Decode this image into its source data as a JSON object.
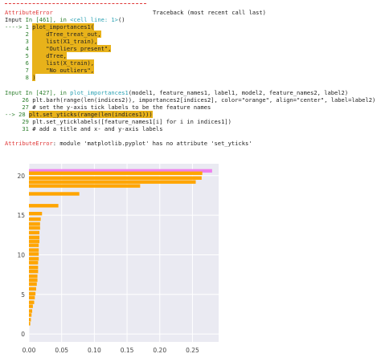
{
  "traceback": {
    "error_name": "AttributeError",
    "header_right": "Traceback (most recent call last)",
    "input1": {
      "prefix": "Input ",
      "in_label": "In [461], in ",
      "cell_ref": "<cell line: 1>",
      "suffix": "()",
      "arrow_line": "----> 1 ",
      "lines": [
        {
          "num": "",
          "code": "plot_importances1("
        },
        {
          "num": "2",
          "code": "    dTree_treat_out,"
        },
        {
          "num": "3",
          "code": "    list(X1_train),"
        },
        {
          "num": "4",
          "code": "    \"Outliers present\","
        },
        {
          "num": "5",
          "code": "    dTree,"
        },
        {
          "num": "6",
          "code": "    list(X_train),"
        },
        {
          "num": "7",
          "code": "    \"No outliers\","
        },
        {
          "num": "8",
          "code": ")"
        }
      ]
    },
    "input2": {
      "in_label": "Input In [427], in ",
      "func": "plot_importances1",
      "args": "(model1, feature_names1, label1, model2, feature_names2, label2)",
      "lines": [
        {
          "num": "26",
          "code": "plt.barh(range(len(indices2)), importances2[indices2], color=\"orange\", align=\"center\", label=label2)"
        },
        {
          "num": "27",
          "code": "# set the y-axis tick labels to be the feature names"
        },
        {
          "num": "28",
          "code": "plt.set_yticks(range(len(indices1)))",
          "arrow": "--> 28 "
        },
        {
          "num": "29",
          "code": "plt.set_yticklabels([feature_names1[i] for i in indices1])"
        },
        {
          "num": "31",
          "code": "# add a title and x- and y-axis labels"
        }
      ]
    },
    "final_error": "AttributeError",
    "final_message": ": module 'matplotlib.pyplot' has no attribute 'set_yticks'"
  },
  "chart_data": {
    "type": "bar",
    "orientation": "horizontal",
    "title": "",
    "xlabel": "",
    "ylabel": "",
    "xlim": [
      0,
      0.29
    ],
    "ylim": [
      -1,
      21.5
    ],
    "xticks": [
      "0.00",
      "0.05",
      "0.10",
      "0.15",
      "0.20",
      "0.25"
    ],
    "xtick_values": [
      0,
      0.05,
      0.1,
      0.15,
      0.2,
      0.25
    ],
    "yticks": [
      "0",
      "5",
      "10",
      "15",
      "20"
    ],
    "ytick_values": [
      0,
      5,
      10,
      15,
      20
    ],
    "grid": true,
    "background": "#eaeaf2",
    "series": [
      {
        "color": "#ee82ee",
        "y": [
          20.6
        ],
        "values": [
          0.28
        ]
      },
      {
        "color": "#ffa500",
        "y": [
          20.3,
          19.7,
          19.2,
          18.7,
          17.7,
          16.2,
          15.2,
          14.5,
          13.9,
          13.4,
          12.8,
          12.2,
          11.7,
          11.2,
          10.6,
          10.1,
          9.5,
          9.0,
          8.4,
          7.9,
          7.3,
          6.8,
          6.3,
          5.7,
          5.1,
          4.6,
          4.0,
          3.5,
          2.9,
          2.4,
          1.8,
          1.3
        ],
        "values": [
          0.265,
          0.264,
          0.255,
          0.17,
          0.077,
          0.045,
          0.02,
          0.018,
          0.017,
          0.017,
          0.016,
          0.016,
          0.016,
          0.015,
          0.015,
          0.015,
          0.015,
          0.014,
          0.014,
          0.014,
          0.013,
          0.013,
          0.012,
          0.011,
          0.01,
          0.009,
          0.008,
          0.006,
          0.005,
          0.004,
          0.003,
          0.002
        ]
      }
    ]
  }
}
